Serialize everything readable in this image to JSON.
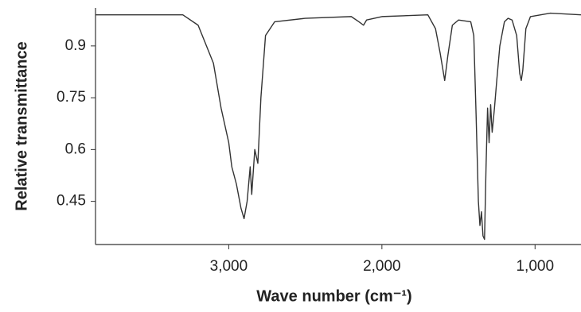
{
  "chart_data": {
    "type": "line",
    "xlabel": "Wave number (cm⁻¹)",
    "ylabel": "Relative transmittance",
    "x": [
      3870,
      3300,
      3200,
      3100,
      3050,
      3020,
      3000,
      2980,
      2950,
      2920,
      2900,
      2880,
      2860,
      2850,
      2830,
      2810,
      2790,
      2760,
      2700,
      2500,
      2200,
      2150,
      2120,
      2100,
      2000,
      1700,
      1650,
      1620,
      1590,
      1570,
      1540,
      1500,
      1420,
      1400,
      1385,
      1370,
      1360,
      1350,
      1340,
      1330,
      1320,
      1310,
      1300,
      1290,
      1280,
      1265,
      1250,
      1230,
      1200,
      1176,
      1150,
      1120,
      1100,
      1090,
      1080,
      1060,
      1030,
      900,
      700
    ],
    "values": [
      0.99,
      0.99,
      0.96,
      0.85,
      0.72,
      0.66,
      0.62,
      0.55,
      0.5,
      0.43,
      0.4,
      0.45,
      0.55,
      0.47,
      0.6,
      0.56,
      0.75,
      0.93,
      0.97,
      0.98,
      0.985,
      0.97,
      0.96,
      0.975,
      0.985,
      0.99,
      0.95,
      0.88,
      0.8,
      0.87,
      0.96,
      0.975,
      0.97,
      0.93,
      0.7,
      0.45,
      0.38,
      0.42,
      0.35,
      0.34,
      0.55,
      0.72,
      0.62,
      0.73,
      0.65,
      0.72,
      0.8,
      0.9,
      0.97,
      0.98,
      0.975,
      0.93,
      0.82,
      0.8,
      0.83,
      0.95,
      0.985,
      0.995,
      0.99
    ],
    "color": "#333333",
    "xlim": [
      3870,
      700
    ],
    "ylim": [
      0.325,
      1.01
    ],
    "xticks": [
      {
        "value": 3000,
        "label": "3,000"
      },
      {
        "value": 2000,
        "label": "2,000"
      },
      {
        "value": 1000,
        "label": "1,000"
      }
    ],
    "yticks": [
      0.45,
      0.6,
      0.75,
      0.9
    ]
  }
}
